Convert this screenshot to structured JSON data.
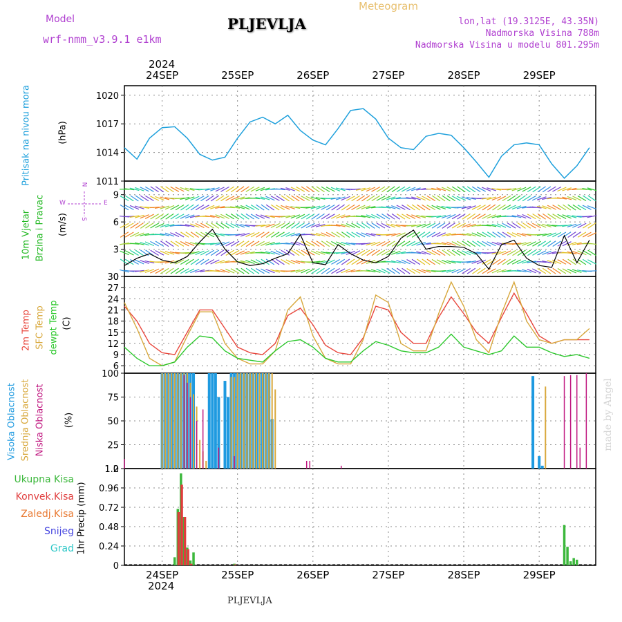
{
  "header": {
    "model_label": "Model",
    "model_name": "wrf-nmm_v3.9.1 e1km",
    "station": "PLJEVLJA",
    "meteogram": "Meteogram",
    "lonlat": "lon,lat (19.3125E, 43.35N)",
    "elevation": "Nadmorska Visina 788m",
    "model_elevation": "Nadmorska Visina u modelu 801.295m",
    "year_top": "2024",
    "year_bottom": "2024",
    "footer_station": "PLJEVLJA",
    "watermark": "made by Angel"
  },
  "colors": {
    "pressure": "#1ea0dc",
    "wind_label": "#22b822",
    "t2m": "#e8463c",
    "sfc": "#d8a83c",
    "dewpt": "#2cc82c",
    "cloud_high": "#1e9ae0",
    "cloud_mid": "#d8a83c",
    "cloud_low": "#c01880",
    "precip_total": "#3cb83c",
    "precip_conv": "#e03c3c",
    "precip_frozen": "#e87830",
    "snow": "#4848e0",
    "hail": "#30c8c8",
    "compass": "#b040d0"
  },
  "days": [
    "24SEP",
    "25SEP",
    "26SEP",
    "27SEP",
    "28SEP",
    "29SEP"
  ],
  "panels": {
    "pressure": {
      "label": "Pritisak na nivou mora",
      "unit": "(hPa)"
    },
    "wind": {
      "label1": "10m Vjetar",
      "label2": "Brzina i Pravac",
      "unit": "(m/s)",
      "compass": [
        "N",
        "W",
        "E",
        "S"
      ]
    },
    "temp": {
      "label1": "2m Temp",
      "label2": "SFC Temp",
      "label3": "dewpt Temp",
      "unit": "(C)"
    },
    "cloud": {
      "label1": "Visoka Oblacnost",
      "label2": "Srednja Oblacnost",
      "label3": "Niska Oblacnost",
      "unit": "(%)"
    },
    "precip": {
      "legend": [
        "Ukupna Kisa",
        "Konvek.Kisa",
        "Zaledj.Kisa",
        "Snijeg",
        "Grad"
      ],
      "unit": "1hr Precip (mm)"
    }
  },
  "chart_data": [
    {
      "type": "line",
      "name": "pressure",
      "ylim": [
        1011,
        1021
      ],
      "yticks": [
        1011,
        1014,
        1017,
        1020
      ],
      "x": [
        0,
        4,
        8,
        12,
        16,
        20,
        24,
        28,
        32,
        36,
        40,
        44,
        48,
        52,
        56,
        60,
        64,
        68,
        72,
        76,
        80,
        84,
        88,
        92,
        96,
        100,
        104,
        108,
        112,
        116,
        120,
        124,
        128,
        132,
        136,
        140,
        144,
        148
      ],
      "series": [
        {
          "values": [
            1014.5,
            1013.3,
            1015.5,
            1016.6,
            1016.7,
            1015.5,
            1013.8,
            1013.2,
            1013.5,
            1015.5,
            1017.2,
            1017.7,
            1017.0,
            1017.9,
            1016.3,
            1015.3,
            1014.8,
            1016.5,
            1018.4,
            1018.6,
            1017.5,
            1015.5,
            1014.5,
            1014.3,
            1015.7,
            1016.0,
            1015.8,
            1014.5,
            1013.0,
            1011.4,
            1013.6,
            1014.8,
            1015.0,
            1014.8,
            1012.8,
            1011.3,
            1012.6,
            1014.5
          ]
        }
      ]
    },
    {
      "type": "line",
      "name": "wind",
      "ylim": [
        0,
        10.5
      ],
      "yticks": [
        0,
        3,
        6,
        9
      ],
      "x": [
        0,
        4,
        8,
        12,
        16,
        20,
        24,
        28,
        32,
        36,
        40,
        44,
        48,
        52,
        56,
        60,
        64,
        68,
        72,
        76,
        80,
        84,
        88,
        92,
        96,
        100,
        104,
        108,
        112,
        116,
        120,
        124,
        128,
        132,
        136,
        140,
        144,
        148
      ],
      "series": [
        {
          "values": [
            1.2,
            2.0,
            2.5,
            1.8,
            1.5,
            2.2,
            3.8,
            5.2,
            3.0,
            1.6,
            1.2,
            1.4,
            2.0,
            2.5,
            4.6,
            1.5,
            1.3,
            3.5,
            2.5,
            1.8,
            1.5,
            2.2,
            4.2,
            5.1,
            3.0,
            3.3,
            3.3,
            3.2,
            2.5,
            0.8,
            3.5,
            4.0,
            2.0,
            1.2,
            1.0,
            4.5,
            1.5,
            4.0
          ]
        }
      ]
    },
    {
      "type": "line",
      "name": "temperature",
      "ylim": [
        4,
        30
      ],
      "yticks": [
        6,
        9,
        12,
        15,
        18,
        21,
        24,
        27,
        30
      ],
      "x": [
        0,
        4,
        8,
        12,
        16,
        20,
        24,
        28,
        32,
        36,
        40,
        44,
        48,
        52,
        56,
        60,
        64,
        68,
        72,
        76,
        80,
        84,
        88,
        92,
        96,
        100,
        104,
        108,
        112,
        116,
        120,
        124,
        128,
        132,
        136,
        140,
        144,
        148
      ],
      "series": [
        {
          "name": "2m Temp",
          "values": [
            22,
            18,
            12,
            9.5,
            9,
            15,
            21,
            21,
            16,
            11,
            9.5,
            9,
            12,
            19.5,
            21.5,
            17,
            11.5,
            9.5,
            9,
            13.5,
            22,
            21,
            15,
            12,
            12,
            19,
            24.5,
            20,
            15,
            12,
            19,
            25.5,
            20,
            14,
            12,
            13,
            13,
            13
          ]
        },
        {
          "name": "SFC Temp",
          "values": [
            23,
            16,
            8,
            6,
            7,
            14,
            20.5,
            20.5,
            12,
            8,
            6.5,
            6.5,
            10,
            21,
            24.5,
            14,
            8,
            6.5,
            6.5,
            13,
            25,
            23,
            12,
            10,
            10,
            20,
            28.5,
            22,
            13,
            9.5,
            20,
            28.5,
            18,
            13,
            12,
            13,
            13,
            16
          ]
        },
        {
          "name": "dewpt Temp",
          "values": [
            11,
            8,
            6,
            6,
            7,
            11,
            14,
            13.5,
            10,
            8,
            7.5,
            7,
            10,
            12.5,
            13,
            11,
            8,
            7,
            7,
            10,
            12.5,
            11.5,
            10,
            9.5,
            9.5,
            11,
            14.5,
            11,
            10,
            9,
            10,
            14,
            11,
            11,
            9.5,
            8.5,
            9,
            8
          ]
        }
      ]
    },
    {
      "type": "bar",
      "name": "cloud",
      "ylim": [
        0,
        100
      ],
      "yticks": [
        0,
        25,
        50,
        75,
        100
      ],
      "series": [
        {
          "name": "Visoka Oblacnost",
          "x": [
            12,
            13,
            14,
            15,
            16,
            17,
            18,
            19,
            20,
            21,
            22,
            27,
            28,
            29,
            30,
            32,
            33,
            34,
            35,
            36,
            37,
            38,
            39,
            40,
            41,
            42,
            43,
            44,
            45,
            46,
            47,
            130,
            132,
            133
          ],
          "values": [
            100,
            100,
            100,
            100,
            100,
            100,
            100,
            100,
            100,
            100,
            100,
            100,
            100,
            100,
            75,
            92,
            75,
            100,
            100,
            100,
            100,
            100,
            100,
            100,
            100,
            100,
            100,
            100,
            100,
            100,
            52,
            97,
            13,
            3
          ]
        },
        {
          "name": "Srednja Oblacnost",
          "x": [
            12,
            13,
            14,
            15,
            16,
            17,
            18,
            19,
            20,
            21,
            22,
            23,
            24,
            25,
            26,
            34,
            35,
            36,
            37,
            38,
            39,
            40,
            41,
            42,
            43,
            44,
            45,
            46,
            47,
            48,
            134
          ],
          "values": [
            100,
            100,
            100,
            100,
            100,
            100,
            100,
            100,
            100,
            90,
            78,
            65,
            30,
            18,
            8,
            96,
            96,
            100,
            100,
            100,
            100,
            100,
            100,
            100,
            100,
            100,
            100,
            100,
            100,
            83,
            86
          ]
        },
        {
          "name": "Niska Oblacnost",
          "x": [
            0,
            19,
            20,
            21,
            23,
            25,
            30,
            35,
            58,
            59,
            69,
            140,
            142,
            144,
            145,
            147
          ],
          "values": [
            10,
            98,
            90,
            75,
            50,
            62,
            22,
            13,
            8,
            8,
            3,
            97,
            98,
            98,
            22,
            100
          ]
        }
      ]
    },
    {
      "type": "bar",
      "name": "precip",
      "ylim": [
        0,
        1.2
      ],
      "yticks": [
        0,
        0.24,
        0.48,
        0.72,
        0.96,
        1.2
      ],
      "series": [
        {
          "name": "Ukupna Kisa",
          "x": [
            16,
            17,
            18,
            19,
            20,
            21,
            22,
            35,
            140,
            141,
            142,
            143,
            144
          ],
          "values": [
            0.1,
            0.7,
            1.14,
            0.6,
            0.22,
            0.06,
            0.16,
            0.02,
            0.5,
            0.23,
            0.05,
            0.09,
            0.07
          ]
        },
        {
          "name": "Konvek.Kisa",
          "x": [
            17,
            18,
            19,
            20,
            21,
            35
          ],
          "values": [
            0.66,
            1.0,
            0.6,
            0.2,
            0.02,
            0.01
          ]
        },
        {
          "name": "Zaledj.Kisa",
          "x": [],
          "values": []
        },
        {
          "name": "Snijeg",
          "x": [],
          "values": []
        },
        {
          "name": "Grad",
          "x": [],
          "values": []
        }
      ]
    }
  ]
}
